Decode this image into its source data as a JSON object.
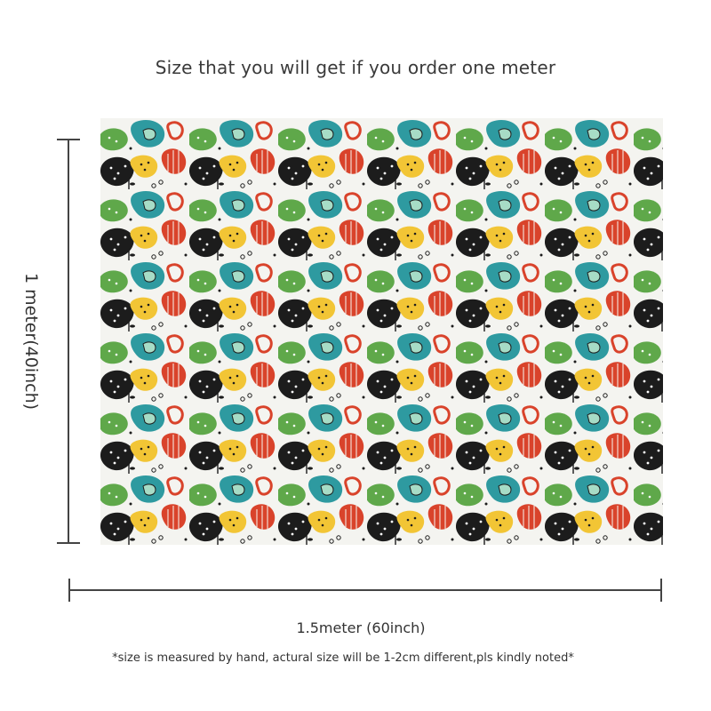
{
  "title": "Size that you will get if you order one meter",
  "height_label": "1 meter(40inch)",
  "width_label": "1.5meter (60inch)",
  "note": "*size is measured by hand, actural size will be 1-2cm different,pls kindly noted*",
  "palette": {
    "red": "#d9432b",
    "yellow": "#f2c535",
    "teal": "#2e9aa0",
    "green": "#5fa84a",
    "mint": "#a7dcc6",
    "black": "#1c1c1c",
    "white": "#f7f7f2"
  }
}
